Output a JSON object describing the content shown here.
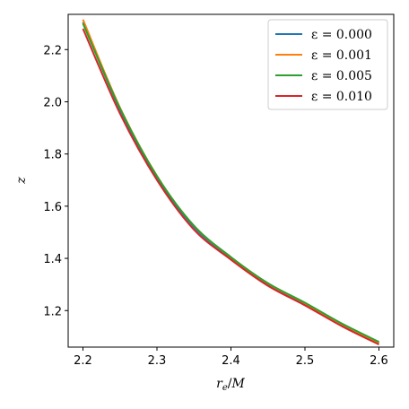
{
  "chart_data": {
    "type": "line",
    "title": "",
    "xlabel": "r_e/M",
    "ylabel": "z",
    "xlim": [
      2.18,
      2.62
    ],
    "ylim": [
      1.06,
      2.335
    ],
    "xticks": [
      2.2,
      2.3,
      2.4,
      2.5,
      2.6
    ],
    "xtick_labels": [
      "2.2",
      "2.3",
      "2.4",
      "2.5",
      "2.6"
    ],
    "yticks": [
      1.2,
      1.4,
      1.6,
      1.8,
      2.0,
      2.2
    ],
    "ytick_labels": [
      "1.2",
      "1.4",
      "1.6",
      "1.8",
      "2.0",
      "2.2"
    ],
    "grid": false,
    "legend_position": "top-right",
    "x": [
      2.2,
      2.25,
      2.3,
      2.35,
      2.4,
      2.45,
      2.5,
      2.55,
      2.6
    ],
    "series": [
      {
        "name": "ε = 0.000",
        "color": "#1f77b4",
        "values": [
          2.305,
          1.97,
          1.71,
          1.52,
          1.4,
          1.3,
          1.225,
          1.145,
          1.075
        ]
      },
      {
        "name": "ε = 0.001",
        "color": "#ff7f0e",
        "values": [
          2.315,
          1.978,
          1.716,
          1.525,
          1.404,
          1.304,
          1.228,
          1.148,
          1.077
        ]
      },
      {
        "name": "ε = 0.005",
        "color": "#2ca02c",
        "values": [
          2.3,
          1.975,
          1.715,
          1.525,
          1.405,
          1.305,
          1.23,
          1.15,
          1.08
        ]
      },
      {
        "name": "ε = 0.010",
        "color": "#d62728",
        "values": [
          2.28,
          1.955,
          1.7,
          1.51,
          1.395,
          1.295,
          1.22,
          1.14,
          1.07
        ]
      }
    ]
  }
}
